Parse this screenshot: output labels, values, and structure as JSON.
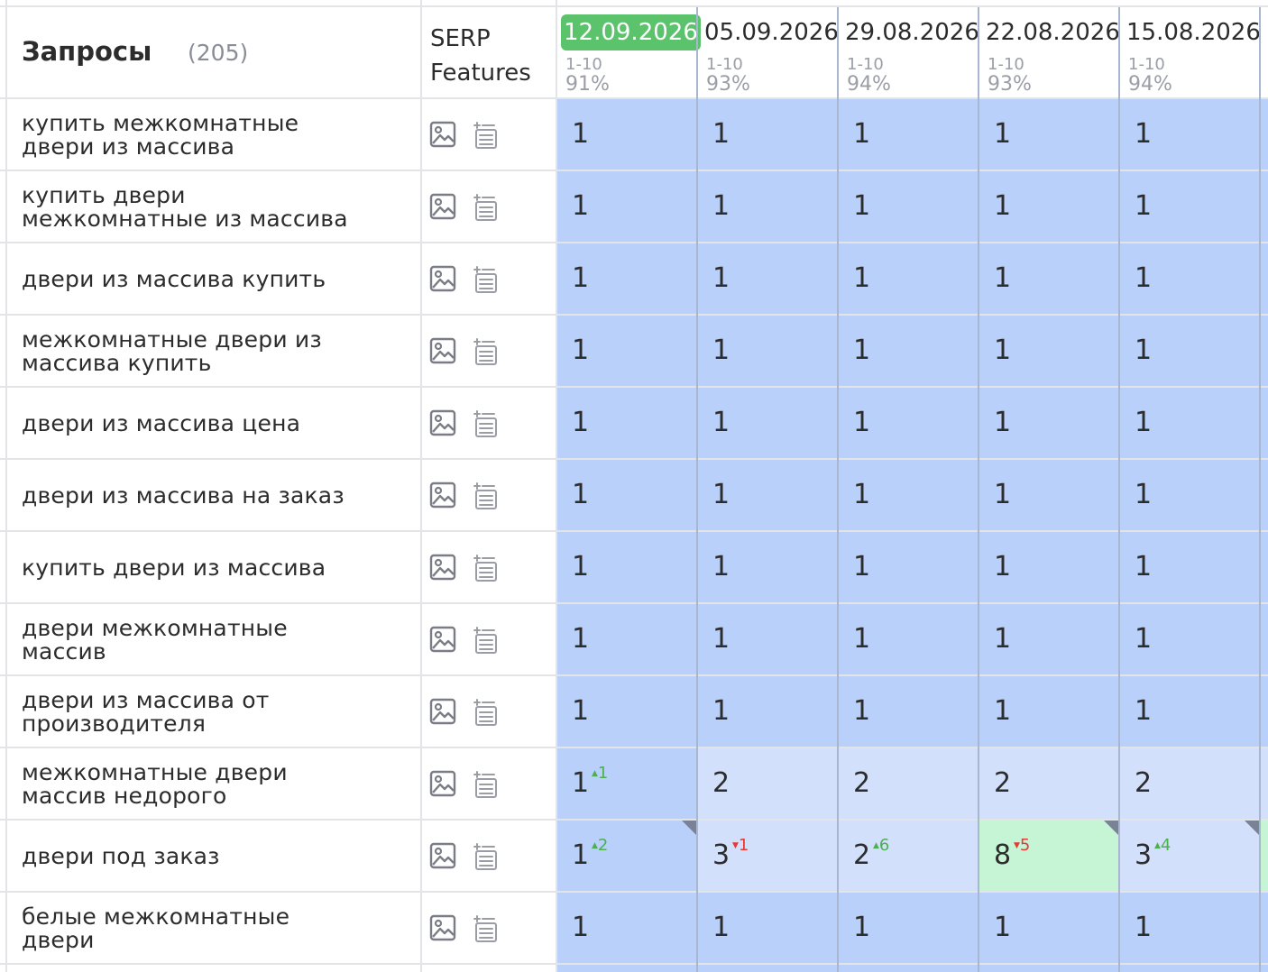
{
  "header": {
    "title": "Запросы",
    "count": "(205)",
    "serp_label_line1": "SERP",
    "serp_label_line2": "Features"
  },
  "dates": [
    {
      "date": "12.09.2026",
      "range": "1-10",
      "pct": "91%",
      "active": true
    },
    {
      "date": "05.09.2026",
      "range": "1-10",
      "pct": "93%",
      "active": false
    },
    {
      "date": "29.08.2026",
      "range": "1-10",
      "pct": "94%",
      "active": false
    },
    {
      "date": "22.08.2026",
      "range": "1-10",
      "pct": "93%",
      "active": false
    },
    {
      "date": "15.08.2026",
      "range": "1-10",
      "pct": "94%",
      "active": false
    }
  ],
  "colors": {
    "top": "#b9d0fa",
    "mid": "#d3e0fc",
    "green": "#c6f5d6",
    "active_date": "#5cc36d",
    "delta_up": "#4caf50",
    "delta_down": "#e53935"
  },
  "icons": [
    "image-icon",
    "snippet-icon"
  ],
  "rows": [
    {
      "query_l1": "купить межкомнатные",
      "query_l2": "двери из массива",
      "cells": [
        {
          "v": "1",
          "bg": "top"
        },
        {
          "v": "1",
          "bg": "top"
        },
        {
          "v": "1",
          "bg": "top"
        },
        {
          "v": "1",
          "bg": "top"
        },
        {
          "v": "1",
          "bg": "top"
        }
      ]
    },
    {
      "query_l1": "купить двери",
      "query_l2": "межкомнатные из массива",
      "cells": [
        {
          "v": "1",
          "bg": "top"
        },
        {
          "v": "1",
          "bg": "top"
        },
        {
          "v": "1",
          "bg": "top"
        },
        {
          "v": "1",
          "bg": "top"
        },
        {
          "v": "1",
          "bg": "top"
        }
      ]
    },
    {
      "query_l1": "двери из массива купить",
      "query_l2": "",
      "cells": [
        {
          "v": "1",
          "bg": "top"
        },
        {
          "v": "1",
          "bg": "top"
        },
        {
          "v": "1",
          "bg": "top"
        },
        {
          "v": "1",
          "bg": "top"
        },
        {
          "v": "1",
          "bg": "top"
        }
      ]
    },
    {
      "query_l1": "межкомнатные двери из",
      "query_l2": "массива купить",
      "cells": [
        {
          "v": "1",
          "bg": "top"
        },
        {
          "v": "1",
          "bg": "top"
        },
        {
          "v": "1",
          "bg": "top"
        },
        {
          "v": "1",
          "bg": "top"
        },
        {
          "v": "1",
          "bg": "top"
        }
      ]
    },
    {
      "query_l1": "двери из массива цена",
      "query_l2": "",
      "cells": [
        {
          "v": "1",
          "bg": "top"
        },
        {
          "v": "1",
          "bg": "top"
        },
        {
          "v": "1",
          "bg": "top"
        },
        {
          "v": "1",
          "bg": "top"
        },
        {
          "v": "1",
          "bg": "top"
        }
      ]
    },
    {
      "query_l1": "двери из массива на заказ",
      "query_l2": "",
      "cells": [
        {
          "v": "1",
          "bg": "top"
        },
        {
          "v": "1",
          "bg": "top"
        },
        {
          "v": "1",
          "bg": "top"
        },
        {
          "v": "1",
          "bg": "top"
        },
        {
          "v": "1",
          "bg": "top"
        }
      ]
    },
    {
      "query_l1": "купить двери из массива",
      "query_l2": "",
      "cells": [
        {
          "v": "1",
          "bg": "top"
        },
        {
          "v": "1",
          "bg": "top"
        },
        {
          "v": "1",
          "bg": "top"
        },
        {
          "v": "1",
          "bg": "top"
        },
        {
          "v": "1",
          "bg": "top"
        }
      ]
    },
    {
      "query_l1": "двери межкомнатные",
      "query_l2": "массив",
      "cells": [
        {
          "v": "1",
          "bg": "top"
        },
        {
          "v": "1",
          "bg": "top"
        },
        {
          "v": "1",
          "bg": "top"
        },
        {
          "v": "1",
          "bg": "top"
        },
        {
          "v": "1",
          "bg": "top"
        }
      ]
    },
    {
      "query_l1": "двери из массива от",
      "query_l2": "производителя",
      "cells": [
        {
          "v": "1",
          "bg": "top"
        },
        {
          "v": "1",
          "bg": "top"
        },
        {
          "v": "1",
          "bg": "top"
        },
        {
          "v": "1",
          "bg": "top"
        },
        {
          "v": "1",
          "bg": "top"
        }
      ]
    },
    {
      "query_l1": "межкомнатные двери",
      "query_l2": "массив недорого",
      "cells": [
        {
          "v": "1",
          "bg": "top",
          "delta": "1",
          "dir": "up"
        },
        {
          "v": "2",
          "bg": "mid"
        },
        {
          "v": "2",
          "bg": "mid"
        },
        {
          "v": "2",
          "bg": "mid"
        },
        {
          "v": "2",
          "bg": "mid"
        }
      ]
    },
    {
      "query_l1": "двери под заказ",
      "query_l2": "",
      "cells": [
        {
          "v": "1",
          "bg": "top",
          "delta": "2",
          "dir": "up",
          "corner": true
        },
        {
          "v": "3",
          "bg": "mid",
          "delta": "1",
          "dir": "down"
        },
        {
          "v": "2",
          "bg": "mid",
          "delta": "6",
          "dir": "up"
        },
        {
          "v": "8",
          "bg": "green",
          "delta": "5",
          "dir": "down",
          "corner": true
        },
        {
          "v": "3",
          "bg": "mid",
          "delta": "4",
          "dir": "up",
          "corner": true
        }
      ]
    },
    {
      "query_l1": "белые межкомнатные",
      "query_l2": "двери",
      "cells": [
        {
          "v": "1",
          "bg": "top"
        },
        {
          "v": "1",
          "bg": "top"
        },
        {
          "v": "1",
          "bg": "top"
        },
        {
          "v": "1",
          "bg": "top"
        },
        {
          "v": "1",
          "bg": "top"
        }
      ]
    }
  ]
}
